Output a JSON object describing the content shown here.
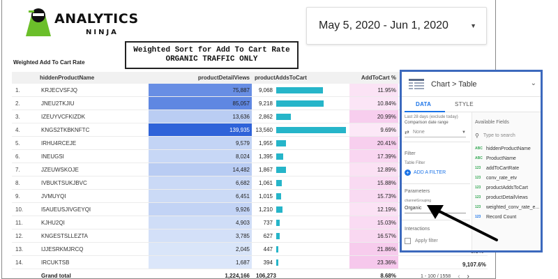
{
  "logo": {
    "word": "ANALYTICS",
    "sub": "NINJA"
  },
  "date_range": {
    "text": "May 5, 2020 - Jun 1, 2020"
  },
  "annotation": {
    "line1": "Weighted Sort for Add To Cart Rate",
    "line2": "ORGANIC TRAFFIC ONLY"
  },
  "table": {
    "title": "Weighted Add To Cart Rate",
    "headers": {
      "name": "hiddenProductName",
      "views": "productDetailViews",
      "adds": "productAddsToCart",
      "rate": "AddToCart %"
    },
    "rows": [
      {
        "idx": "1.",
        "name": "KRJECVSFJQ",
        "views": "75,887",
        "adds": "9,068",
        "rate": "11.95%"
      },
      {
        "idx": "2.",
        "name": "JNEU2TKJIU",
        "views": "85,057",
        "adds": "9,218",
        "rate": "10.84%"
      },
      {
        "idx": "3.",
        "name": "IZEUYVCFKIZDK",
        "views": "13,636",
        "adds": "2,862",
        "rate": "20.99%"
      },
      {
        "idx": "4.",
        "name": "KNGS2TKBKNFTC",
        "views": "139,935",
        "adds": "13,560",
        "rate": "9.69%"
      },
      {
        "idx": "5.",
        "name": "IRHU4RCEJE",
        "views": "9,579",
        "adds": "1,955",
        "rate": "20.41%"
      },
      {
        "idx": "6.",
        "name": "INEUGSI",
        "views": "8,024",
        "adds": "1,395",
        "rate": "17.39%"
      },
      {
        "idx": "7.",
        "name": "JZEUWSKOJE",
        "views": "14,482",
        "adds": "1,867",
        "rate": "12.89%"
      },
      {
        "idx": "8.",
        "name": "IVBUKTSUKJBVC",
        "views": "6,682",
        "adds": "1,061",
        "rate": "15.88%"
      },
      {
        "idx": "9.",
        "name": "JVMUYQI",
        "views": "6,451",
        "adds": "1,015",
        "rate": "15.73%"
      },
      {
        "idx": "10.",
        "name": "I5AUEUSJIVGEYQI",
        "views": "9,926",
        "adds": "1,210",
        "rate": "12.19%"
      },
      {
        "idx": "11.",
        "name": "KJHU2QI",
        "views": "4,903",
        "adds": "737",
        "rate": "15.03%"
      },
      {
        "idx": "12.",
        "name": "KNGESTSLLEZTA",
        "views": "3,785",
        "adds": "627",
        "rate": "16.57%"
      },
      {
        "idx": "13.",
        "name": "IJJESRKMJRCQ",
        "views": "2,045",
        "adds": "447",
        "rate": "21.86%"
      },
      {
        "idx": "14.",
        "name": "IRCUKTSB",
        "views": "1,687",
        "adds": "394",
        "rate": "23.36%"
      }
    ],
    "total": {
      "label": "Grand total",
      "views": "1,224,166",
      "adds": "106,273",
      "rate": "8.68%",
      "extra": "9,107.6%"
    },
    "partial_extra": "8.9%",
    "pagination": "1 - 100 / 1558",
    "prev_icon": "chevron-left-icon",
    "next_icon": "chevron-right-icon"
  },
  "panel": {
    "title": "Chart > Table",
    "tabs": {
      "data": "DATA",
      "style": "STYLE"
    },
    "date_range_hint": "Last 28 days (exclude today)",
    "comparison_label": "Comparison date range",
    "comparison_value": "None",
    "filter_heading": "Filter",
    "table_filter_label": "Table Filter",
    "add_filter": "ADD A FILTER",
    "parameters_heading": "Parameters",
    "param_name": "channelGrouping",
    "param_value": "Organic",
    "interactions_heading": "Interactions",
    "apply_filter": "Apply filter",
    "available_fields_label": "Available Fields",
    "search_placeholder": "Type to search",
    "fields": [
      {
        "type": "ABC",
        "name": "hiddenProductName"
      },
      {
        "type": "ABC",
        "name": "ProductName"
      },
      {
        "type": "123",
        "name": "addToCartRate"
      },
      {
        "type": "123",
        "name": "conv_rate_etv"
      },
      {
        "type": "123",
        "name": "productAddsToCart"
      },
      {
        "type": "123",
        "name": "productDetailViews"
      },
      {
        "type": "123",
        "name": "weighted_conv_rate_e..."
      },
      {
        "type": "123",
        "name": "Record Count"
      }
    ]
  },
  "bar_data": {
    "views": [
      75887,
      85057,
      13636,
      139935,
      9579,
      8024,
      14482,
      6682,
      6451,
      9926,
      4903,
      3785,
      2045,
      1687
    ],
    "adds": [
      9068,
      9218,
      2862,
      13560,
      1955,
      1395,
      1867,
      1061,
      1015,
      1210,
      737,
      627,
      447,
      394
    ],
    "rates": [
      11.95,
      10.84,
      20.99,
      9.69,
      20.41,
      17.39,
      12.89,
      15.88,
      15.73,
      12.19,
      15.03,
      16.57,
      21.86,
      23.36
    ]
  },
  "colors": {
    "accent": "#1a73e8",
    "bar": "#26b5c9",
    "heat_dark": "#2f63d9",
    "rate_bg": "#f9d9f0",
    "panel_border": "#3c69bd"
  }
}
